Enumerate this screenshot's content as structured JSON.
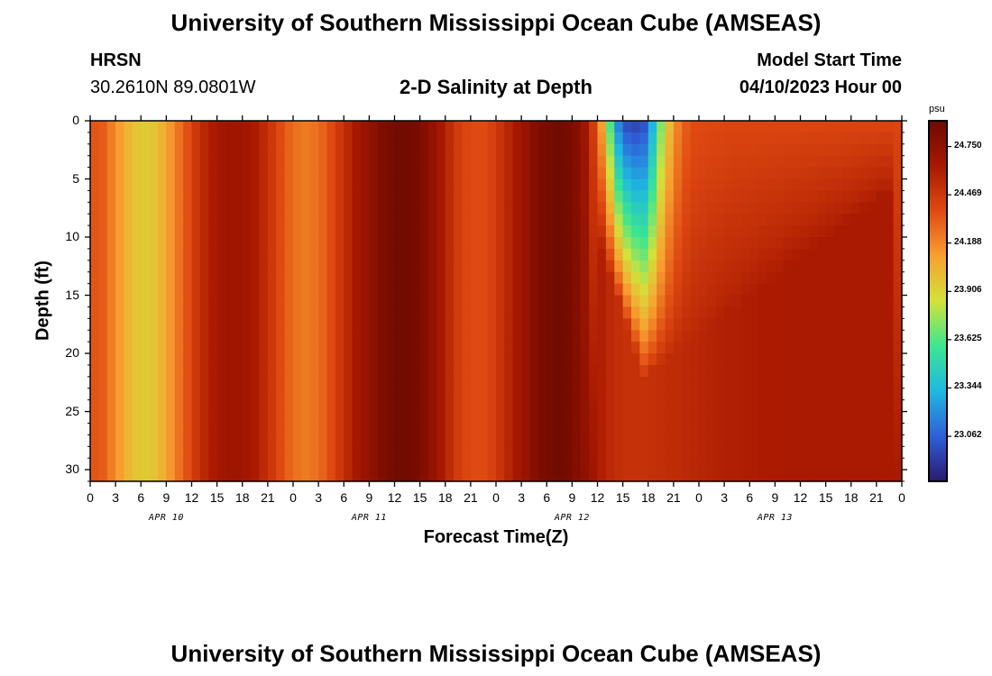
{
  "page": {
    "title_top": "University of Southern Mississippi Ocean Cube (AMSEAS)",
    "title_bottom": "University of Southern Mississippi Ocean Cube (AMSEAS)",
    "station": "HRSN",
    "coords": "30.2610N  89.0801W",
    "subtitle": "2-D Salinity at Depth",
    "model_start_label": "Model Start Time",
    "model_start_value": "04/10/2023 Hour 00"
  },
  "chart_data": {
    "type": "heatmap",
    "title": "2-D Salinity at Depth",
    "xlabel": "Forecast Time(Z)",
    "ylabel": "Depth (ft)",
    "x_range_hours": [
      0,
      96
    ],
    "y_range_ft": [
      0,
      31
    ],
    "y_ticks": [
      0,
      5,
      10,
      15,
      20,
      25,
      30
    ],
    "x_tick_labels": [
      "0",
      "3",
      "6",
      "9",
      "12",
      "15",
      "18",
      "21",
      "0",
      "3",
      "6",
      "9",
      "12",
      "15",
      "18",
      "21",
      "0",
      "3",
      "6",
      "9",
      "12",
      "15",
      "18",
      "21",
      "0",
      "3",
      "6",
      "9",
      "12",
      "15",
      "18",
      "21",
      "0"
    ],
    "day_labels": [
      "APR 10",
      "APR 11",
      "APR 12",
      "APR 13"
    ],
    "colorbar": {
      "unit": "psu",
      "ticks": [
        24.75,
        24.469,
        24.188,
        23.906,
        23.625,
        23.344,
        23.062
      ],
      "tick_labels": [
        "24.750",
        "24.469",
        "24.188",
        "23.906",
        "23.625",
        "23.344",
        "23.062"
      ],
      "min": 22.8,
      "max": 24.9,
      "colors": [
        "#2a1a6e",
        "#2f5fd8",
        "#1fb8e0",
        "#3ce690",
        "#d2e23a",
        "#f8a030",
        "#e04a12",
        "#a81800",
        "#6e0a00"
      ]
    },
    "surface_salinity_hourly": [
      24.34,
      24.32,
      24.22,
      24.12,
      24.03,
      23.97,
      23.95,
      23.97,
      24.04,
      24.14,
      24.25,
      24.36,
      24.47,
      24.56,
      24.62,
      24.66,
      24.68,
      24.68,
      24.66,
      24.62,
      24.55,
      24.47,
      24.38,
      24.3,
      24.25,
      24.23,
      24.25,
      24.3,
      24.38,
      24.47,
      24.56,
      24.64,
      24.71,
      24.77,
      24.82,
      24.86,
      24.88,
      24.88,
      24.86,
      24.81,
      24.73,
      24.64,
      24.54,
      24.45,
      24.4,
      24.38,
      24.38,
      24.42,
      24.49,
      24.57,
      24.65,
      24.72,
      24.79,
      24.84,
      24.87,
      24.88,
      24.86,
      24.8,
      24.68,
      24.45,
      24.1,
      23.6,
      23.15,
      22.98,
      22.95,
      23.0,
      23.3,
      23.7,
      24.0,
      24.2,
      24.32,
      24.37,
      24.38,
      24.39,
      24.39,
      24.4,
      24.4,
      24.4,
      24.4,
      24.4,
      24.4,
      24.4,
      24.4,
      24.4,
      24.4,
      24.4,
      24.4,
      24.4,
      24.4,
      24.4,
      24.4,
      24.4,
      24.4,
      24.4,
      24.4,
      24.4
    ],
    "bottom_salinity_hourly": [
      24.34,
      24.32,
      24.22,
      24.12,
      24.03,
      23.97,
      23.95,
      23.97,
      24.04,
      24.14,
      24.25,
      24.36,
      24.47,
      24.56,
      24.62,
      24.66,
      24.68,
      24.68,
      24.66,
      24.62,
      24.55,
      24.47,
      24.38,
      24.3,
      24.25,
      24.23,
      24.25,
      24.3,
      24.38,
      24.47,
      24.56,
      24.64,
      24.71,
      24.77,
      24.82,
      24.86,
      24.88,
      24.88,
      24.86,
      24.81,
      24.73,
      24.64,
      24.54,
      24.45,
      24.4,
      24.38,
      24.38,
      24.42,
      24.49,
      24.57,
      24.65,
      24.72,
      24.79,
      24.84,
      24.87,
      24.88,
      24.86,
      24.8,
      24.75,
      24.68,
      24.6,
      24.55,
      24.52,
      24.5,
      24.5,
      24.5,
      24.51,
      24.52,
      24.53,
      24.54,
      24.55,
      24.56,
      24.57,
      24.58,
      24.59,
      24.6,
      24.6,
      24.61,
      24.61,
      24.62,
      24.62,
      24.62,
      24.63,
      24.63,
      24.63,
      24.63,
      24.63,
      24.63,
      24.63,
      24.63,
      24.63,
      24.63,
      24.63,
      24.63,
      24.63,
      24.63
    ],
    "fresh_plume": {
      "center_hour": 65,
      "surface_min": 22.95,
      "reaches_depth_ft": 22
    }
  }
}
